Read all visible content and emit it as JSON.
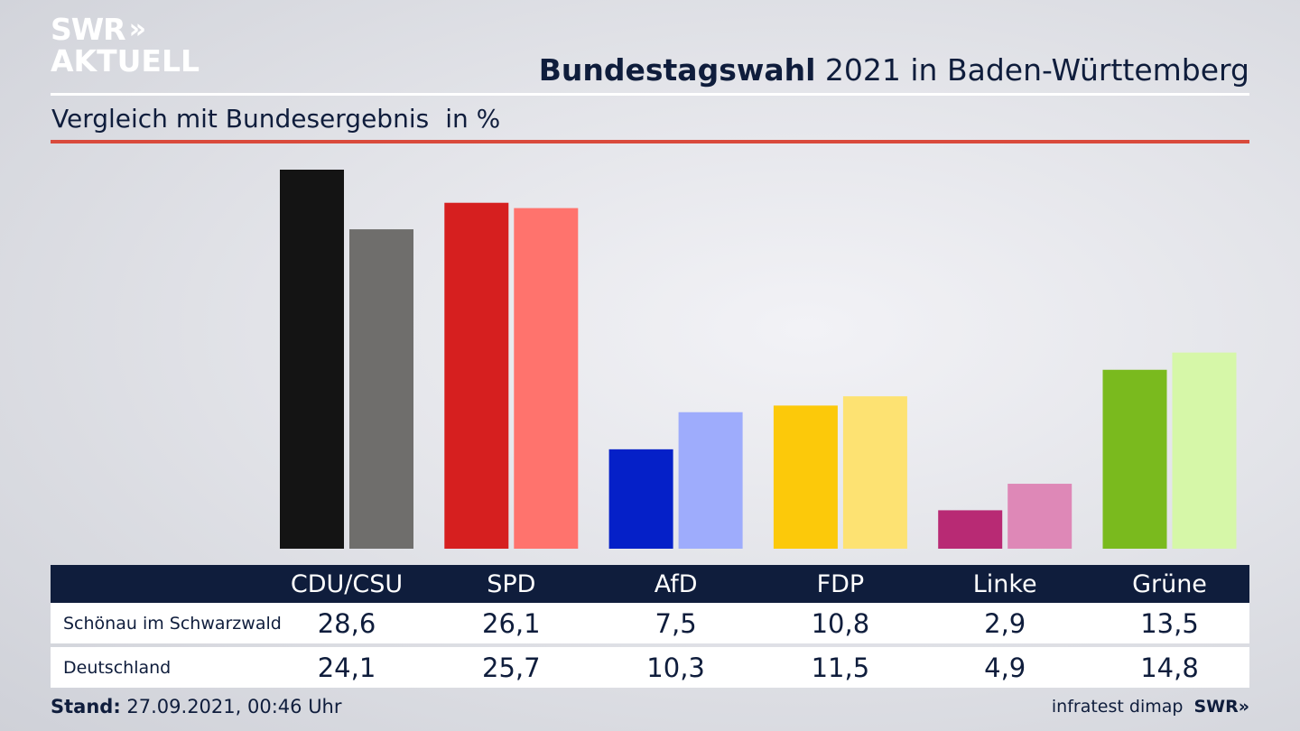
{
  "header": {
    "logo_line1": "SWR",
    "logo_chevrons": "»",
    "logo_line2": "AKTUELL",
    "title_bold": "Bundestagswahl",
    "title_rest": "2021 in Baden-Württemberg",
    "subtitle": "Vergleich mit Bundesergebnis",
    "subtitle_unit": "in %"
  },
  "colors": {
    "navy": "#0f1d3c",
    "accent_red": "#d94a3c"
  },
  "chart_data": {
    "type": "bar",
    "categories": [
      "CDU/CSU",
      "SPD",
      "AfD",
      "FDP",
      "Linke",
      "Grüne"
    ],
    "series": [
      {
        "name": "Schönau im Schwarzwald",
        "values": [
          28.6,
          26.1,
          7.5,
          10.8,
          2.9,
          13.5
        ],
        "colors": [
          "#141414",
          "#d61f1f",
          "#0520c8",
          "#fcc90a",
          "#b82a74",
          "#7aba1e"
        ]
      },
      {
        "name": "Deutschland",
        "values": [
          24.1,
          25.7,
          10.3,
          11.5,
          4.9,
          14.8
        ],
        "colors": [
          "#6f6e6c",
          "#ff736d",
          "#9eacfc",
          "#fde272",
          "#de88b7",
          "#d6f7a8"
        ]
      }
    ],
    "ylim": [
      0,
      28.6
    ],
    "legend": "table-below"
  },
  "table": {
    "rows": [
      {
        "label": "Schönau im Schwarzwald",
        "values": [
          "28,6",
          "26,1",
          "7,5",
          "10,8",
          "2,9",
          "13,5"
        ]
      },
      {
        "label": "Deutschland",
        "values": [
          "24,1",
          "25,7",
          "10,3",
          "11,5",
          "4,9",
          "14,8"
        ]
      }
    ]
  },
  "footer": {
    "stand_label": "Stand:",
    "stand_value": "27.09.2021, 00:46 Uhr",
    "source": "infratest dimap",
    "swr": "SWR",
    "swr_chevrons": "»"
  }
}
